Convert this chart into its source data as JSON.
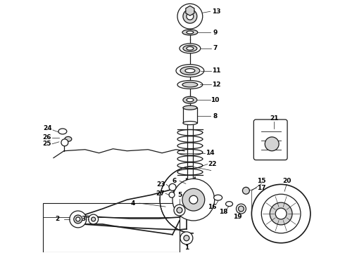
{
  "background_color": "#ffffff",
  "line_color": "#1a1a1a",
  "label_fontsize": 6.5,
  "label_fontweight": "bold",
  "figsize": [
    4.9,
    3.6
  ],
  "dpi": 100
}
